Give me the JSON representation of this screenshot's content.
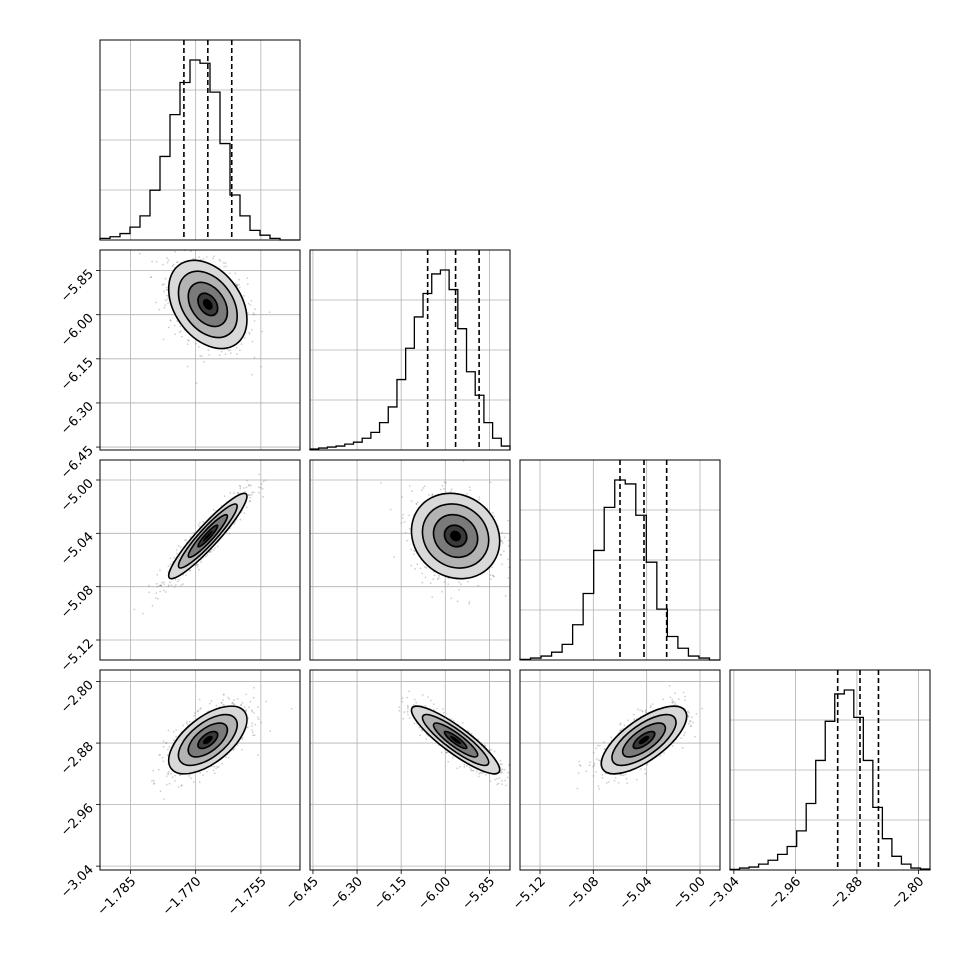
{
  "chart_data": {
    "type": "corner",
    "description_params": 4,
    "grid": true,
    "quantiles": [
      0.16,
      0.5,
      0.84
    ],
    "params": [
      {
        "range": [
          -1.792,
          -1.746
        ],
        "ticks": [
          -1.785,
          -1.77,
          -1.755
        ],
        "tick_labels": [
          "−1.785",
          "−1.770",
          "−1.755"
        ]
      },
      {
        "range": [
          -6.46,
          -5.78
        ],
        "ticks": [
          -6.45,
          -6.3,
          -6.15,
          -6.0,
          -5.85
        ],
        "tick_labels": [
          "−6.45",
          "−6.30",
          "−6.15",
          "−6.00",
          "−5.85"
        ]
      },
      {
        "range": [
          -5.135,
          -4.985
        ],
        "ticks": [
          -5.12,
          -5.08,
          -5.04,
          -5.0
        ],
        "tick_labels": [
          "−5.12",
          "−5.08",
          "−5.04",
          "−5.00"
        ]
      },
      {
        "range": [
          -3.045,
          -2.785
        ],
        "ticks": [
          -3.04,
          -2.96,
          -2.88,
          -2.8
        ],
        "tick_labels": [
          "−3.04",
          "−2.96",
          "−2.88",
          "−2.80"
        ]
      }
    ],
    "marginals": [
      {
        "q": [
          -1.7727,
          -1.7672,
          -1.7617
        ],
        "counts": [
          1,
          2,
          4,
          8,
          15,
          31,
          52,
          78,
          98,
          112,
          110,
          92,
          60,
          28,
          15,
          6,
          3,
          1,
          0,
          0
        ]
      },
      {
        "q": [
          -6.06,
          -5.965,
          -5.885
        ],
        "counts": [
          0.5,
          1,
          1.5,
          2,
          3,
          4,
          6,
          9,
          14,
          22,
          36,
          52,
          68,
          80,
          90,
          92,
          82,
          62,
          40,
          28,
          14,
          6,
          2
        ]
      },
      {
        "q": [
          -5.06,
          -5.042,
          -5.025
        ],
        "counts": [
          0.3,
          1,
          2,
          4,
          8,
          18,
          34,
          56,
          78,
          92,
          90,
          74,
          50,
          26,
          12,
          6,
          2,
          1,
          0
        ]
      },
      {
        "q": [
          -2.905,
          -2.876,
          -2.852
        ],
        "counts": [
          0.3,
          1,
          1.5,
          3,
          5,
          8,
          12,
          20,
          34,
          56,
          76,
          90,
          92,
          78,
          56,
          32,
          16,
          7,
          3,
          1,
          0.5
        ]
      }
    ],
    "pairs": [
      {
        "x": 0,
        "y": 1,
        "mean": [
          -1.7672,
          -5.965
        ],
        "sd": [
          0.0045,
          0.075
        ],
        "rho": -0.35
      },
      {
        "x": 0,
        "y": 2,
        "mean": [
          -1.7672,
          -5.042
        ],
        "sd": [
          0.0045,
          0.016
        ],
        "rho": 0.93
      },
      {
        "x": 1,
        "y": 2,
        "mean": [
          -5.965,
          -5.042
        ],
        "sd": [
          0.075,
          0.016
        ],
        "rho": -0.12
      },
      {
        "x": 0,
        "y": 3,
        "mean": [
          -1.7672,
          -2.876
        ],
        "sd": [
          0.0045,
          0.022
        ],
        "rho": 0.6
      },
      {
        "x": 1,
        "y": 3,
        "mean": [
          -5.965,
          -2.876
        ],
        "sd": [
          0.075,
          0.022
        ],
        "rho": -0.88
      },
      {
        "x": 2,
        "y": 3,
        "mean": [
          -5.042,
          -2.876
        ],
        "sd": [
          0.016,
          0.022
        ],
        "rho": 0.7
      }
    ]
  }
}
